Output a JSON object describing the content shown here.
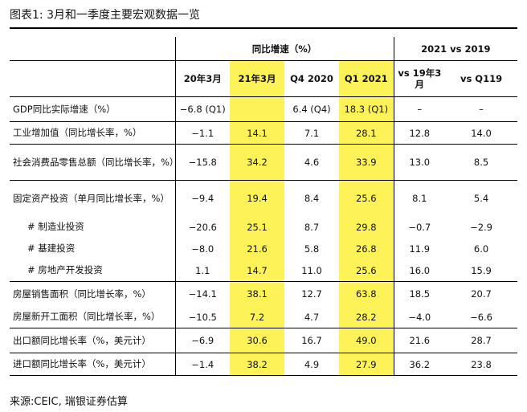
{
  "title": "图表1: 3月和一季度主要宏观数据一览",
  "source": "来源:CEIC, 瑞银证券估算",
  "headers": {
    "group1": "同比增速（%）",
    "group2": "2021 vs 2019",
    "cols": [
      "20年3月",
      "21年3月",
      "Q4 2020",
      "Q1 2021",
      "vs 19年3月",
      "vs Q119"
    ]
  },
  "highlight_color": "#fdf359",
  "rows": [
    {
      "label": "GDP同比实际增速（%）",
      "values": [
        "−6.8 (Q1)",
        "",
        "6.4 (Q4)",
        "18.3 (Q1)",
        "–",
        "–"
      ]
    },
    {
      "label": "工业增加值（同比增长率，%）",
      "values": [
        "−1.1",
        "14.1",
        "7.1",
        "28.1",
        "12.8",
        "14.0"
      ]
    },
    {
      "label": "社会消费品零售总额（同比增长率，%）",
      "values": [
        "−15.8",
        "34.2",
        "4.6",
        "33.9",
        "13.0",
        "8.5"
      ]
    },
    {
      "label": "固定资产投资（单月同比增长率，%）",
      "values": [
        "−9.4",
        "19.4",
        "8.4",
        "25.6",
        "8.1",
        "5.4"
      ]
    },
    {
      "label": "# 制造业投资",
      "values": [
        "−20.6",
        "25.1",
        "8.7",
        "29.8",
        "−0.7",
        "−2.9"
      ]
    },
    {
      "label": "# 基建投资",
      "values": [
        "−8.0",
        "21.6",
        "5.8",
        "26.8",
        "11.9",
        "6.0"
      ]
    },
    {
      "label": "# 房地产开发投资",
      "values": [
        "1.1",
        "14.7",
        "11.0",
        "25.6",
        "16.0",
        "15.9"
      ]
    },
    {
      "label": "房屋销售面积（同比增长率，%）",
      "values": [
        "−14.1",
        "38.1",
        "12.7",
        "63.8",
        "18.5",
        "20.7"
      ]
    },
    {
      "label": "房屋新开工面积（同比增长率，%）",
      "values": [
        "−10.5",
        "7.2",
        "4.7",
        "28.2",
        "−4.0",
        "−6.6"
      ]
    },
    {
      "label": "出口额同比增长率（%，美元计）",
      "values": [
        "−6.9",
        "30.6",
        "16.7",
        "49.0",
        "21.6",
        "28.7"
      ]
    },
    {
      "label": "进口额同比增长率（%，美元计）",
      "values": [
        "−1.4",
        "38.2",
        "4.9",
        "27.9",
        "36.2",
        "23.8"
      ]
    }
  ]
}
